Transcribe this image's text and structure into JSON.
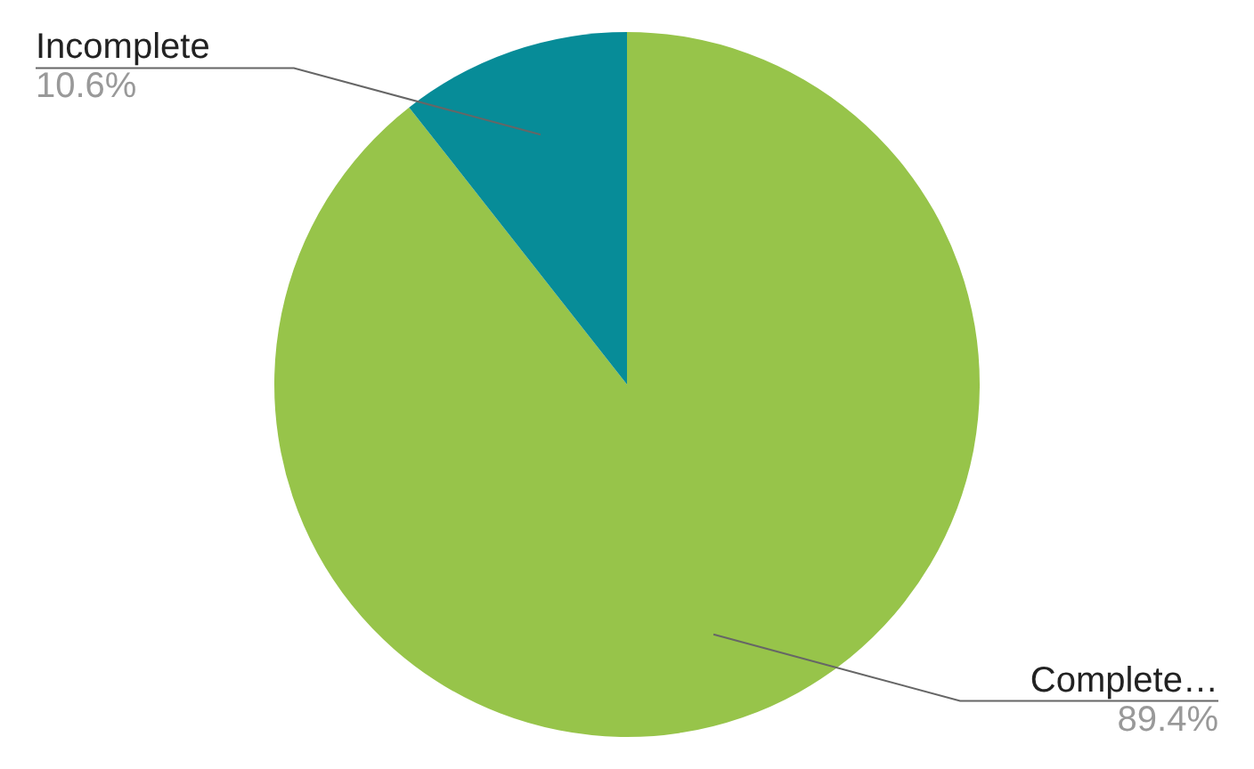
{
  "chart_data": {
    "type": "pie",
    "categories": [
      "Complete…",
      "Incomplete"
    ],
    "values": [
      89.4,
      10.6
    ],
    "colors": [
      "#97c44a",
      "#078c98"
    ],
    "value_labels": [
      "89.4%",
      "10.6%"
    ],
    "legend": false
  }
}
